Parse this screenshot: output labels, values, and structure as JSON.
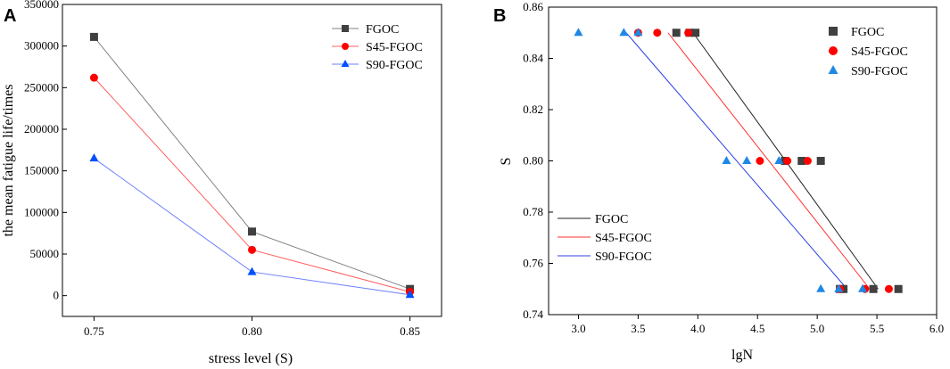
{
  "chart_data": [
    {
      "panel": "A",
      "type": "line",
      "xlabel": "stress level (S)",
      "ylabel": "the mean fatigue life/times",
      "xlim": [
        0.74,
        0.86
      ],
      "ylim": [
        -25000,
        350000
      ],
      "xticks": [
        0.75,
        0.8,
        0.85
      ],
      "xtick_labels": [
        "0.75",
        "0.80",
        "0.85"
      ],
      "yticks": [
        0,
        50000,
        100000,
        150000,
        200000,
        250000,
        300000,
        350000
      ],
      "ytick_labels": [
        "0",
        "50000",
        "100000",
        "150000",
        "200000",
        "250000",
        "300000",
        "350000"
      ],
      "legend_position": "top-right",
      "series": [
        {
          "name": "FGOC",
          "color": "#808080",
          "marker": "square",
          "marker_color": "#404040",
          "x": [
            0.75,
            0.8,
            0.85
          ],
          "y": [
            311000,
            77000,
            8000
          ]
        },
        {
          "name": "S45-FGOC",
          "color": "#ff6060",
          "marker": "circle",
          "marker_color": "#ff0000",
          "x": [
            0.75,
            0.8,
            0.85
          ],
          "y": [
            262000,
            55000,
            4500
          ]
        },
        {
          "name": "S90-FGOC",
          "color": "#6a7fff",
          "marker": "triangle",
          "marker_color": "#0050ff",
          "x": [
            0.75,
            0.8,
            0.85
          ],
          "y": [
            165000,
            28500,
            1000
          ]
        }
      ]
    },
    {
      "panel": "B",
      "type": "scatter",
      "xlabel": "lgN",
      "ylabel": "S",
      "xlim": [
        2.75,
        6.0
      ],
      "ylim": [
        0.74,
        0.86
      ],
      "xticks": [
        3.0,
        3.5,
        4.0,
        4.5,
        5.0,
        5.5,
        6.0
      ],
      "xtick_labels": [
        "3.0",
        "3.5",
        "4.0",
        "4.5",
        "5.0",
        "5.5",
        "6.0"
      ],
      "yticks": [
        0.74,
        0.76,
        0.78,
        0.8,
        0.82,
        0.84,
        0.86
      ],
      "ytick_labels": [
        "0.74",
        "0.76",
        "0.78",
        "0.80",
        "0.82",
        "0.84",
        "0.86"
      ],
      "scatter_legend_position": "top-right",
      "line_legend_position": "bottom-left",
      "series": [
        {
          "name": "FGOC",
          "marker": "square",
          "color": "#404040",
          "points": [
            [
              3.82,
              0.85
            ],
            [
              3.93,
              0.85
            ],
            [
              3.98,
              0.85
            ],
            [
              4.73,
              0.8
            ],
            [
              4.87,
              0.8
            ],
            [
              5.03,
              0.8
            ],
            [
              5.19,
              0.75
            ],
            [
              5.22,
              0.75
            ],
            [
              5.47,
              0.75
            ],
            [
              5.68,
              0.75
            ]
          ]
        },
        {
          "name": "S45-FGOC",
          "marker": "circle",
          "color": "#ff0000",
          "points": [
            [
              3.5,
              0.85
            ],
            [
              3.66,
              0.85
            ],
            [
              3.92,
              0.85
            ],
            [
              4.52,
              0.8
            ],
            [
              4.75,
              0.8
            ],
            [
              4.92,
              0.8
            ],
            [
              5.19,
              0.75
            ],
            [
              5.4,
              0.75
            ],
            [
              5.6,
              0.75
            ]
          ]
        },
        {
          "name": "S90-FGOC",
          "marker": "triangle",
          "color": "#1e88e5",
          "points": [
            [
              3.0,
              0.85
            ],
            [
              3.38,
              0.85
            ],
            [
              3.5,
              0.85
            ],
            [
              4.24,
              0.8
            ],
            [
              4.41,
              0.8
            ],
            [
              4.68,
              0.8
            ],
            [
              5.03,
              0.75
            ],
            [
              5.18,
              0.75
            ],
            [
              5.38,
              0.75
            ]
          ]
        }
      ],
      "fits": [
        {
          "name": "FGOC",
          "color": "#202020",
          "from": [
            3.96,
            0.85
          ],
          "to": [
            5.51,
            0.75
          ]
        },
        {
          "name": "S45-FGOC",
          "color": "#ff3030",
          "from": [
            3.75,
            0.85
          ],
          "to": [
            5.44,
            0.75
          ]
        },
        {
          "name": "S90-FGOC",
          "color": "#3040e0",
          "from": [
            3.4,
            0.85
          ],
          "to": [
            5.25,
            0.75
          ]
        }
      ]
    }
  ]
}
